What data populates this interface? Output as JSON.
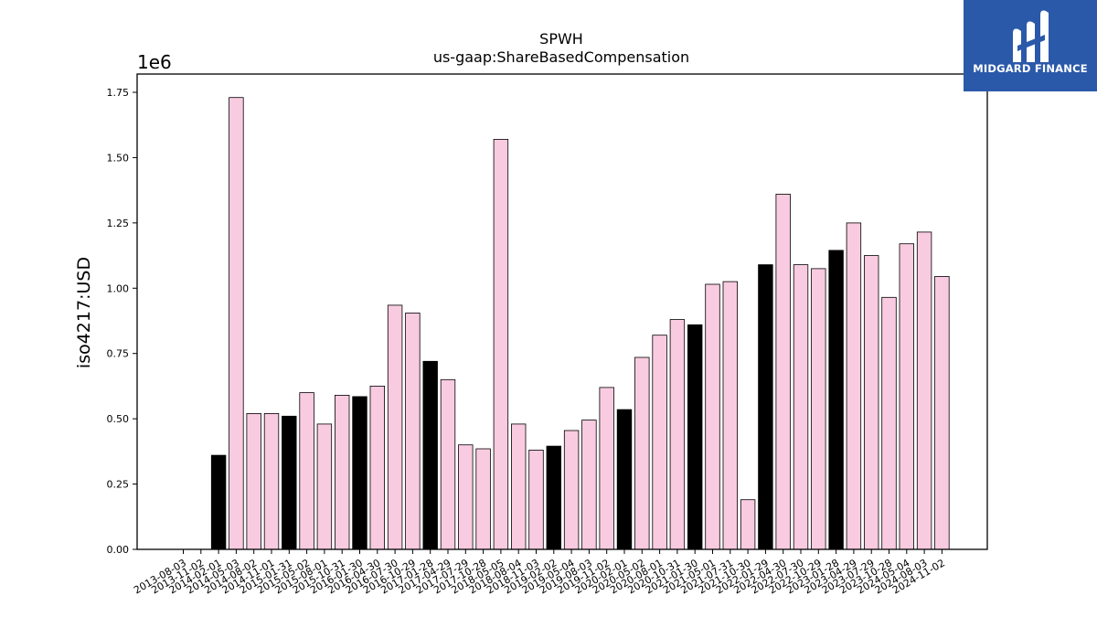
{
  "brand": {
    "name": "MIDGARD FINANCE",
    "bg_color": "#2b59aa"
  },
  "chart_data": {
    "type": "bar",
    "title": "SPWH",
    "subtitle": "us-gaap:ShareBasedCompensation",
    "ylabel": "iso4217:USD",
    "y_multiplier": "1e6",
    "ylim": [
      0,
      1.82
    ],
    "yticks": [
      "0.00",
      "0.25",
      "0.50",
      "0.75",
      "1.00",
      "1.25",
      "1.50",
      "1.75"
    ],
    "grid": false,
    "colors": {
      "quarter": "#f9cbe0",
      "annual": "#000000",
      "edge": "#000000"
    },
    "categories": [
      "2013-08-03",
      "2013-11-02",
      "2014-02-01",
      "2014-05-03",
      "2014-08-02",
      "2014-11-01",
      "2015-01-31",
      "2015-05-02",
      "2015-08-01",
      "2015-10-31",
      "2016-01-30",
      "2016-04-30",
      "2016-07-30",
      "2016-10-29",
      "2017-01-28",
      "2017-04-29",
      "2017-07-29",
      "2017-10-28",
      "2018-05-05",
      "2018-08-04",
      "2018-11-03",
      "2019-02-02",
      "2019-05-04",
      "2019-08-03",
      "2019-11-02",
      "2020-02-01",
      "2020-05-02",
      "2020-08-01",
      "2020-10-31",
      "2021-01-30",
      "2021-05-01",
      "2021-07-31",
      "2021-10-30",
      "2022-01-29",
      "2022-04-30",
      "2022-07-30",
      "2022-10-29",
      "2023-01-28",
      "2023-04-29",
      "2023-07-29",
      "2023-10-28",
      "2024-05-04",
      "2024-08-03",
      "2024-11-02"
    ],
    "values": [
      0,
      0,
      0.36,
      1.73,
      0.52,
      0.52,
      0.51,
      0.6,
      0.48,
      0.59,
      0.585,
      0.625,
      0.935,
      0.905,
      0.72,
      0.65,
      0.4,
      0.385,
      1.57,
      0.48,
      0.38,
      0.395,
      0.455,
      0.495,
      0.62,
      0.535,
      0.735,
      0.82,
      0.88,
      0.86,
      1.015,
      1.025,
      0.19,
      1.09,
      1.36,
      1.09,
      1.075,
      1.145,
      1.25,
      1.125,
      0.965,
      1.17,
      1.215,
      1.045
    ],
    "annual": [
      false,
      false,
      true,
      false,
      false,
      false,
      true,
      false,
      false,
      false,
      true,
      false,
      false,
      false,
      true,
      false,
      false,
      false,
      false,
      false,
      false,
      true,
      false,
      false,
      false,
      true,
      false,
      false,
      false,
      true,
      false,
      false,
      false,
      true,
      false,
      false,
      false,
      true,
      false,
      false,
      false,
      false,
      false,
      false
    ]
  }
}
